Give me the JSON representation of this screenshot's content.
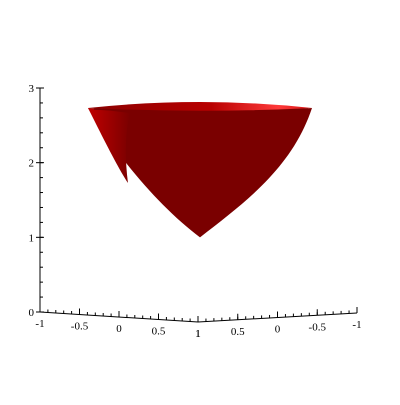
{
  "chart_data": {
    "type": "surface3d",
    "description_free": true,
    "surface": {
      "shape": "paraboloid",
      "z_min": 1,
      "z_top": 2.7,
      "color_main": "#7a0000",
      "color_light": "#e8202a",
      "color_mid": "#b40000"
    },
    "z_axis": {
      "ticks": [
        0,
        1,
        2,
        3
      ],
      "range": [
        0,
        3
      ]
    },
    "x_axis": {
      "ticks": [
        "-1",
        "-0.5",
        "0",
        "0.5",
        "1"
      ],
      "range": [
        -1,
        1
      ]
    },
    "y_axis": {
      "ticks": [
        "1",
        "0.5",
        "0",
        "-0.5",
        "-1"
      ],
      "range": [
        1,
        -1
      ]
    },
    "grid": false,
    "axis_color": "#000000"
  }
}
